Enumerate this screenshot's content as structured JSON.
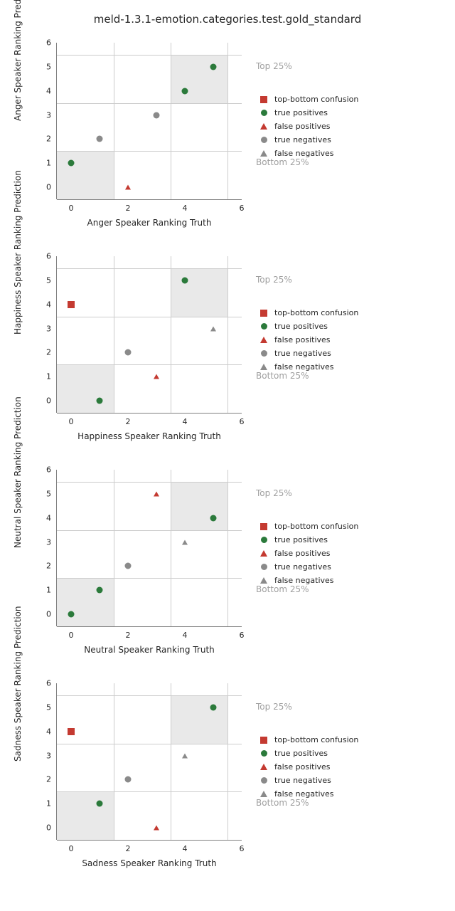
{
  "suptitle": "meld-1.3.1-emotion.categories.test.gold_standard",
  "colors": {
    "tp": "#2b7a3b",
    "fp": "#c43a31",
    "tn": "#8a8a8a",
    "fn": "#8a8a8a",
    "tbc": "#c43a31",
    "grid": "#cccccc",
    "shade": "#e9e9e9",
    "spine": "#808080",
    "annot": "#9f9f9f",
    "text": "#262626",
    "bg": "#ffffff"
  },
  "axis": {
    "xlim": [
      -0.5,
      6.0
    ],
    "ylim": [
      -0.5,
      6.0
    ],
    "xticks": [
      0,
      2,
      4,
      6
    ],
    "yticks": [
      0,
      1,
      2,
      3,
      4,
      5,
      6
    ],
    "grid_y": [
      1.5,
      3.5,
      5.5
    ],
    "grid_x": [
      1.5,
      3.5,
      5.5
    ],
    "shade_boxes": [
      {
        "x0": -0.5,
        "x1": 1.5,
        "y0": -0.5,
        "y1": 1.5
      },
      {
        "x0": 3.5,
        "x1": 5.5,
        "y0": 3.5,
        "y1": 5.5
      }
    ],
    "tick_fontsize": 11,
    "label_fontsize": 12
  },
  "legend": {
    "items": [
      {
        "shape": "square",
        "color_key": "tbc",
        "label": "top-bottom confusion"
      },
      {
        "shape": "circle",
        "color_key": "tp",
        "label": "true positives"
      },
      {
        "shape": "tri",
        "color_key": "fp",
        "label": "false positives"
      },
      {
        "shape": "circle",
        "color_key": "tn",
        "label": "true negatives"
      },
      {
        "shape": "tri",
        "color_key": "fn",
        "label": "false negatives"
      }
    ]
  },
  "annotations": {
    "top": {
      "text": "Top 25%",
      "y": 5
    },
    "bottom": {
      "text": "Bottom 25%",
      "y": 1
    }
  },
  "panels": [
    {
      "name": "anger",
      "xlabel": "Anger Speaker Ranking Truth",
      "ylabel": "Anger Speaker Ranking Prediction",
      "points": [
        {
          "x": 0,
          "y": 1,
          "kind": "tp",
          "shape": "circle"
        },
        {
          "x": 1,
          "y": 2,
          "kind": "tn",
          "shape": "circle"
        },
        {
          "x": 2,
          "y": 0,
          "kind": "fp",
          "shape": "tri-sm"
        },
        {
          "x": 3,
          "y": 3,
          "kind": "tn",
          "shape": "circle"
        },
        {
          "x": 4,
          "y": 4,
          "kind": "tp",
          "shape": "circle"
        },
        {
          "x": 5,
          "y": 5,
          "kind": "tp",
          "shape": "circle"
        }
      ]
    },
    {
      "name": "happiness",
      "xlabel": "Happiness Speaker Ranking Truth",
      "ylabel": "Happiness Speaker Ranking Prediction",
      "points": [
        {
          "x": 0,
          "y": 4,
          "kind": "tbc",
          "shape": "square"
        },
        {
          "x": 1,
          "y": 0,
          "kind": "tp",
          "shape": "circle"
        },
        {
          "x": 2,
          "y": 2,
          "kind": "tn",
          "shape": "circle"
        },
        {
          "x": 3,
          "y": 1,
          "kind": "fp",
          "shape": "tri-sm"
        },
        {
          "x": 4,
          "y": 5,
          "kind": "tp",
          "shape": "circle"
        },
        {
          "x": 5,
          "y": 3,
          "kind": "fn",
          "shape": "tri-sm"
        }
      ]
    },
    {
      "name": "neutral",
      "xlabel": "Neutral Speaker Ranking Truth",
      "ylabel": "Neutral Speaker Ranking Prediction",
      "points": [
        {
          "x": 0,
          "y": 0,
          "kind": "tp",
          "shape": "circle"
        },
        {
          "x": 1,
          "y": 1,
          "kind": "tp",
          "shape": "circle"
        },
        {
          "x": 2,
          "y": 2,
          "kind": "tn",
          "shape": "circle"
        },
        {
          "x": 3,
          "y": 5,
          "kind": "fp",
          "shape": "tri-sm"
        },
        {
          "x": 4,
          "y": 3,
          "kind": "fn",
          "shape": "tri-sm"
        },
        {
          "x": 5,
          "y": 4,
          "kind": "tp",
          "shape": "circle"
        }
      ]
    },
    {
      "name": "sadness",
      "xlabel": "Sadness Speaker Ranking Truth",
      "ylabel": "Sadness Speaker Ranking Prediction",
      "points": [
        {
          "x": 0,
          "y": 4,
          "kind": "tbc",
          "shape": "square"
        },
        {
          "x": 1,
          "y": 1,
          "kind": "tp",
          "shape": "circle"
        },
        {
          "x": 2,
          "y": 2,
          "kind": "tn",
          "shape": "circle"
        },
        {
          "x": 3,
          "y": 0,
          "kind": "fp",
          "shape": "tri-sm"
        },
        {
          "x": 4,
          "y": 3,
          "kind": "fn",
          "shape": "tri-sm"
        },
        {
          "x": 5,
          "y": 5,
          "kind": "tp",
          "shape": "circle"
        }
      ]
    }
  ]
}
